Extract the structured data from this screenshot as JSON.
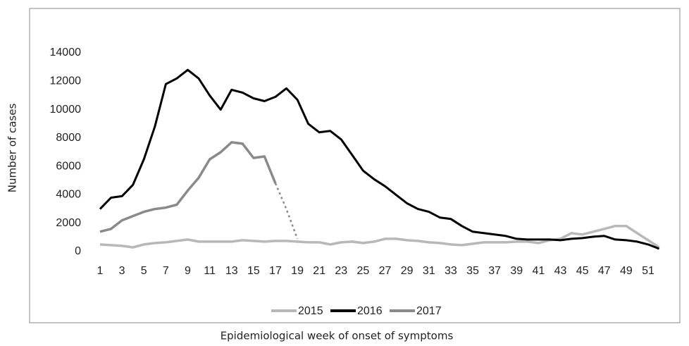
{
  "chart_data": {
    "type": "line",
    "x_label": "Epidemiological week of onset of symptoms",
    "y_label": "Number of cases",
    "categories": [
      1,
      null,
      3,
      null,
      5,
      null,
      7,
      null,
      9,
      null,
      11,
      null,
      13,
      null,
      15,
      null,
      17,
      null,
      19,
      null,
      21,
      null,
      23,
      null,
      25,
      null,
      27,
      null,
      29,
      null,
      31,
      null,
      33,
      null,
      35,
      null,
      37,
      null,
      39,
      null,
      41,
      null,
      43,
      null,
      45,
      null,
      47,
      null,
      49,
      null,
      51,
      null
    ],
    "ylim": [
      0,
      14000
    ],
    "yticks": [
      0,
      2000,
      4000,
      6000,
      8000,
      10000,
      12000,
      14000
    ],
    "legend": "bottom",
    "series": [
      {
        "name": "2015",
        "color": "#b8b8b8",
        "values": [
          500,
          450,
          400,
          300,
          500,
          600,
          650,
          750,
          850,
          700,
          700,
          700,
          700,
          800,
          750,
          700,
          750,
          750,
          700,
          650,
          650,
          500,
          650,
          700,
          600,
          700,
          900,
          900,
          800,
          750,
          650,
          600,
          500,
          450,
          550,
          650,
          650,
          650,
          700,
          700,
          600,
          800,
          900,
          1300,
          1200,
          1400,
          1600,
          1800,
          1800,
          1300,
          800,
          300
        ]
      },
      {
        "name": "2016",
        "color": "#000000",
        "values": [
          3000,
          3800,
          3900,
          4700,
          6500,
          8800,
          11800,
          12200,
          12800,
          12200,
          11000,
          10000,
          11400,
          11200,
          10800,
          10600,
          10900,
          11500,
          10700,
          9000,
          8400,
          8500,
          7900,
          6800,
          5700,
          5100,
          4600,
          4000,
          3400,
          3000,
          2800,
          2400,
          2300,
          1800,
          1400,
          1300,
          1200,
          1100,
          900,
          850,
          850,
          850,
          800,
          900,
          950,
          1050,
          1100,
          850,
          800,
          700,
          500,
          200
        ]
      },
      {
        "name": "2017",
        "color": "#8a8a8a",
        "dashed_after_index": 16,
        "values": [
          1400,
          1600,
          2200,
          2500,
          2800,
          3000,
          3100,
          3300,
          4300,
          5200,
          6500,
          7000,
          7700,
          7600,
          6600,
          6700,
          4800,
          3000,
          900,
          null,
          null,
          null,
          null,
          null,
          null,
          null,
          null,
          null,
          null,
          null,
          null,
          null,
          null,
          null,
          null,
          null,
          null,
          null,
          null,
          null,
          null,
          null,
          null,
          null,
          null,
          null,
          null,
          null,
          null,
          null,
          null,
          null
        ]
      }
    ]
  }
}
